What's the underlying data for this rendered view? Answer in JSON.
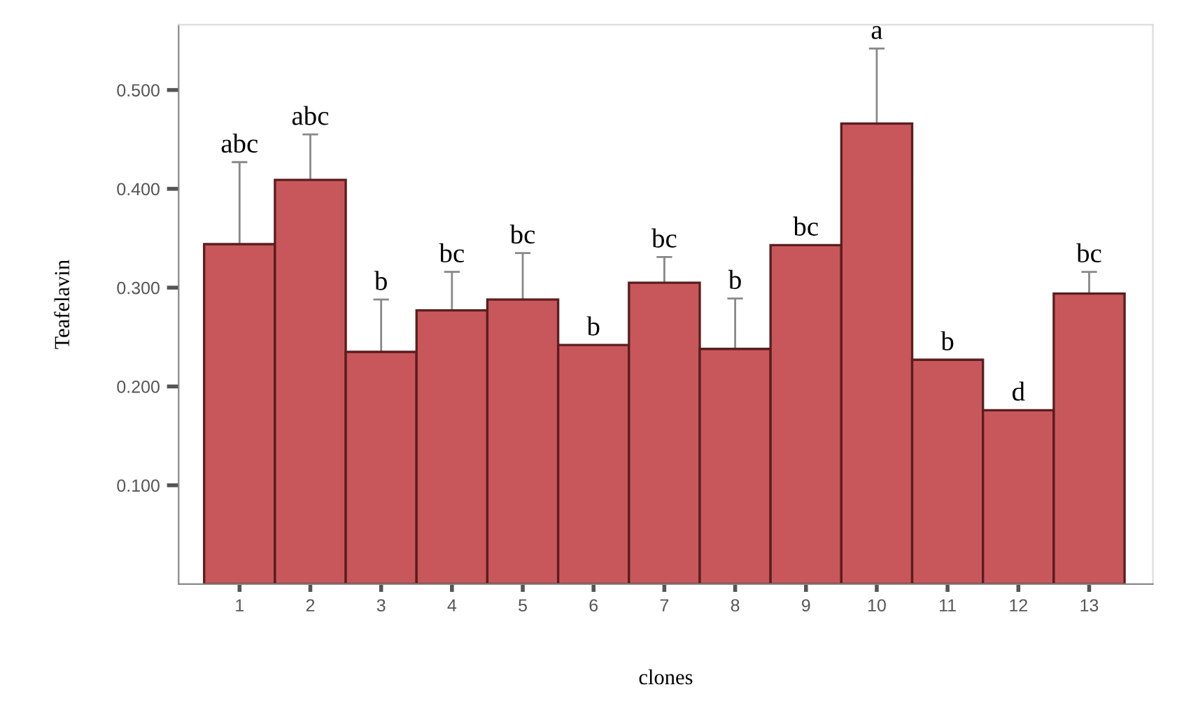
{
  "chart_data": {
    "type": "bar",
    "xlabel": "clones",
    "ylabel": "Teafelavin",
    "categories": [
      "1",
      "2",
      "3",
      "4",
      "5",
      "6",
      "7",
      "8",
      "9",
      "10",
      "11",
      "12",
      "13"
    ],
    "series": [
      {
        "color": "#c8575c",
        "values": [
          0.344,
          0.409,
          0.235,
          0.277,
          0.288,
          0.242,
          0.305,
          0.238,
          0.343,
          0.466,
          0.227,
          0.176,
          0.294
        ],
        "errors": [
          0.083,
          0.046,
          0.053,
          0.039,
          0.047,
          null,
          0.026,
          0.051,
          null,
          0.076,
          null,
          null,
          0.022
        ]
      }
    ],
    "ylim": [
      0,
      0.566
    ],
    "yticks": [
      {
        "value": 0.1,
        "label": "0.100"
      },
      {
        "value": 0.2,
        "label": "0.200"
      },
      {
        "value": 0.3,
        "label": "0.300"
      },
      {
        "value": 0.4,
        "label": "0.400"
      },
      {
        "value": 0.5,
        "label": "0.500"
      }
    ],
    "annotations": [
      {
        "text": "abc",
        "x": "1",
        "y": 0.427
      },
      {
        "text": "abc",
        "x": "2",
        "y": 0.455
      },
      {
        "text": "b",
        "x": "3",
        "y": 0.288
      },
      {
        "text": "bc",
        "x": "4",
        "y": 0.316
      },
      {
        "text": "bc",
        "x": "5",
        "y": 0.335
      },
      {
        "text": "b",
        "x": "6",
        "y": 0.242
      },
      {
        "text": "bc",
        "x": "7",
        "y": 0.331
      },
      {
        "text": "b",
        "x": "8",
        "y": 0.289
      },
      {
        "text": "bc",
        "x": "9",
        "y": 0.343
      },
      {
        "text": "a",
        "x": "10",
        "y": 0.542
      },
      {
        "text": "b",
        "x": "11",
        "y": 0.227
      },
      {
        "text": "d",
        "x": "12",
        "y": 0.176
      },
      {
        "text": "bc",
        "x": "13",
        "y": 0.316
      }
    ]
  }
}
